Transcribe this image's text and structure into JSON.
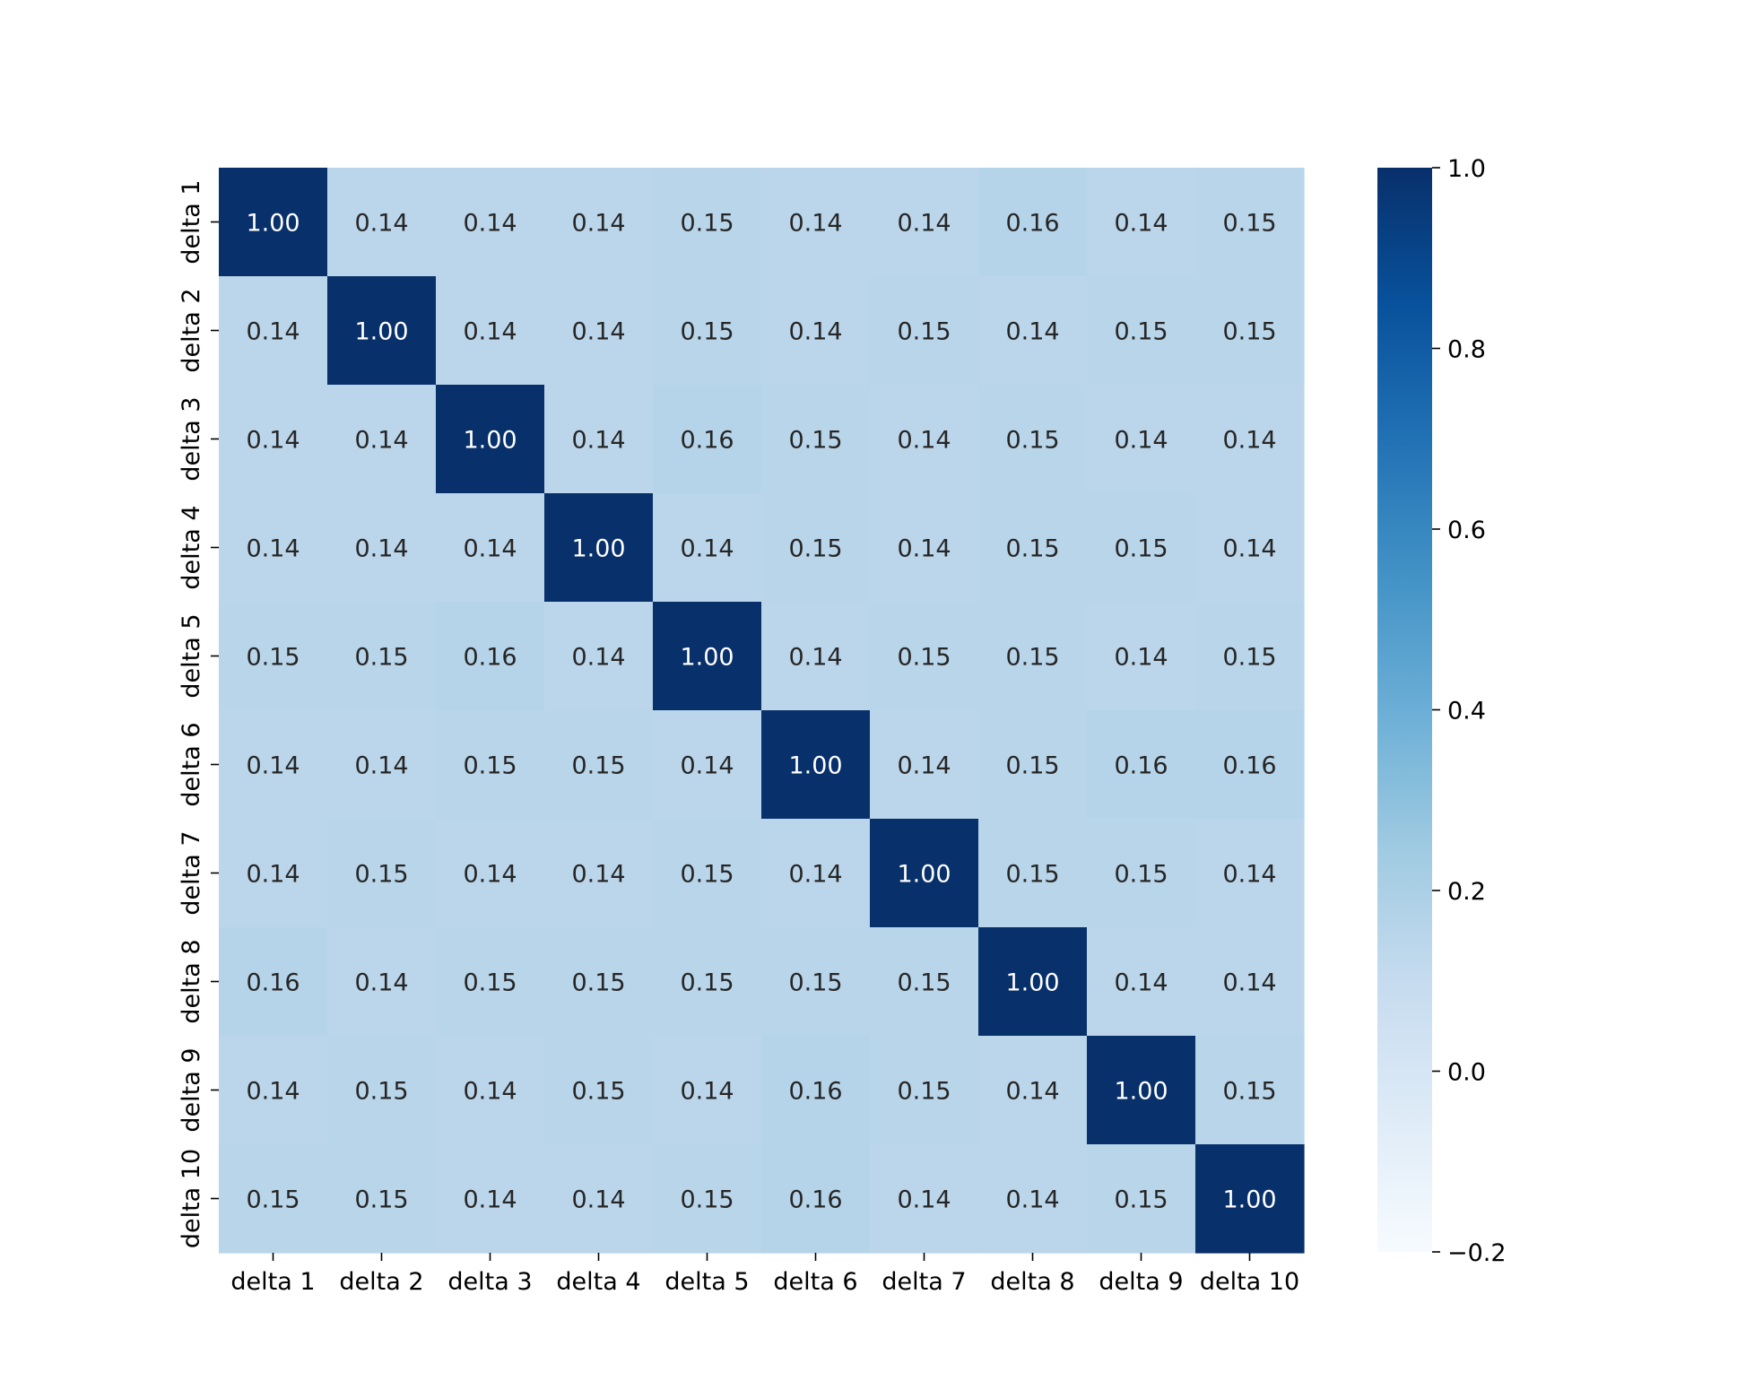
{
  "chart_data": {
    "type": "heatmap",
    "x_labels": [
      "delta 1",
      "delta 2",
      "delta 3",
      "delta 4",
      "delta 5",
      "delta 6",
      "delta 7",
      "delta 8",
      "delta 9",
      "delta 10"
    ],
    "y_labels": [
      "delta 1",
      "delta 2",
      "delta 3",
      "delta 4",
      "delta 5",
      "delta 6",
      "delta 7",
      "delta 8",
      "delta 9",
      "delta 10"
    ],
    "values": [
      [
        1.0,
        0.14,
        0.14,
        0.14,
        0.15,
        0.14,
        0.14,
        0.16,
        0.14,
        0.15
      ],
      [
        0.14,
        1.0,
        0.14,
        0.14,
        0.15,
        0.14,
        0.15,
        0.14,
        0.15,
        0.15
      ],
      [
        0.14,
        0.14,
        1.0,
        0.14,
        0.16,
        0.15,
        0.14,
        0.15,
        0.14,
        0.14
      ],
      [
        0.14,
        0.14,
        0.14,
        1.0,
        0.14,
        0.15,
        0.14,
        0.15,
        0.15,
        0.14
      ],
      [
        0.15,
        0.15,
        0.16,
        0.14,
        1.0,
        0.14,
        0.15,
        0.15,
        0.14,
        0.15
      ],
      [
        0.14,
        0.14,
        0.15,
        0.15,
        0.14,
        1.0,
        0.14,
        0.15,
        0.16,
        0.16
      ],
      [
        0.14,
        0.15,
        0.14,
        0.14,
        0.15,
        0.14,
        1.0,
        0.15,
        0.15,
        0.14
      ],
      [
        0.16,
        0.14,
        0.15,
        0.15,
        0.15,
        0.15,
        0.15,
        1.0,
        0.14,
        0.14
      ],
      [
        0.14,
        0.15,
        0.14,
        0.15,
        0.14,
        0.16,
        0.15,
        0.14,
        1.0,
        0.15
      ],
      [
        0.15,
        0.15,
        0.14,
        0.14,
        0.15,
        0.16,
        0.14,
        0.14,
        0.15,
        1.0
      ]
    ],
    "value_format": "0.00",
    "colorscale": "Blues",
    "vmin": -0.2,
    "vmax": 1.0,
    "colorbar": {
      "ticks": [
        -0.2,
        0.0,
        0.2,
        0.4,
        0.6,
        0.8,
        1.0
      ],
      "tick_labels": [
        "−0.2",
        "0.0",
        "0.2",
        "0.4",
        "0.6",
        "0.8",
        "1.0"
      ],
      "placement": "right"
    },
    "title": "",
    "xlabel": "",
    "ylabel": "",
    "grid": false
  }
}
